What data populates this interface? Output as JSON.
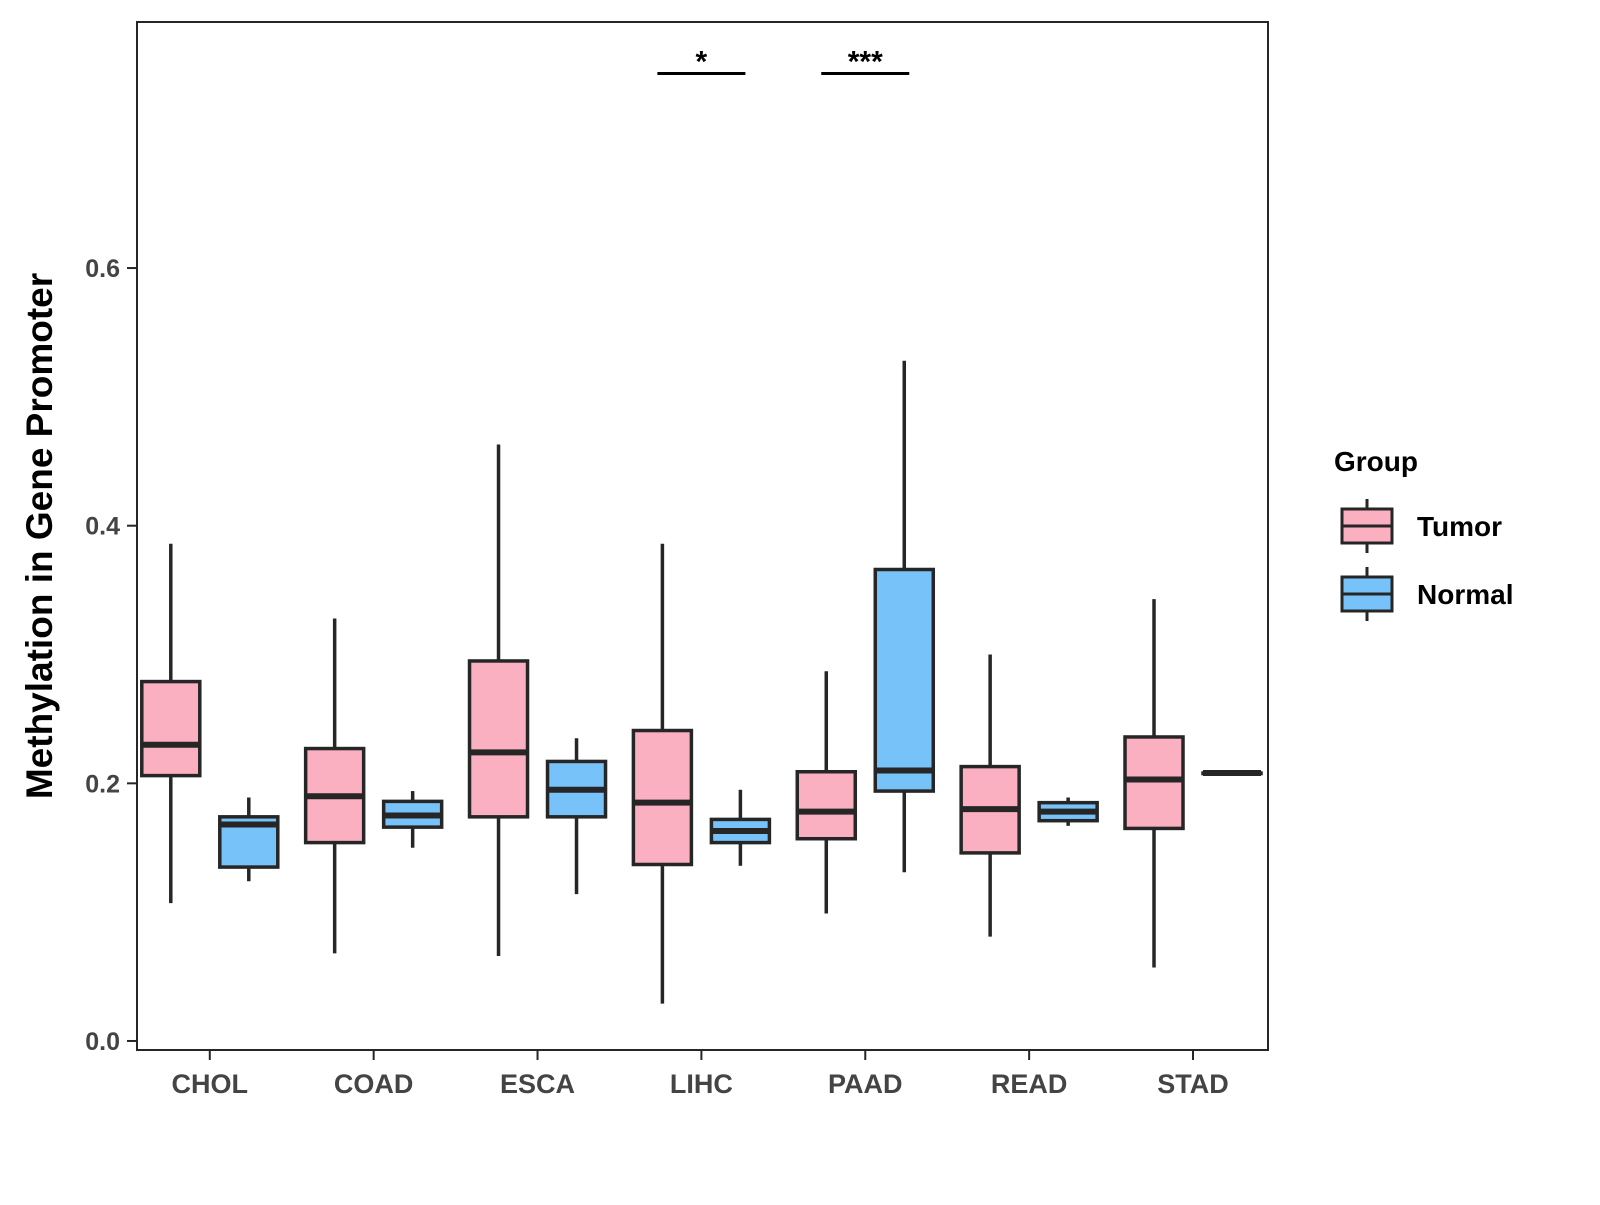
{
  "chart_data": {
    "type": "boxplot",
    "title": "",
    "xlabel": "",
    "ylabel": "Methylation in Gene Promoter",
    "ylim": [
      -0.007,
      0.791
    ],
    "yticks": [
      0.0,
      0.2,
      0.4,
      0.6
    ],
    "ytick_labels": [
      "0.0",
      "0.2",
      "0.4",
      "0.6"
    ],
    "grid": false,
    "categories": [
      "CHOL",
      "COAD",
      "ESCA",
      "LIHC",
      "PAAD",
      "READ",
      "STAD"
    ],
    "legend": {
      "title": "Group",
      "placement": "right",
      "entries": [
        "Tumor",
        "Normal"
      ]
    },
    "colors": {
      "Tumor": "#FBB0C2",
      "Normal": "#77C2F8",
      "stroke": "#262626"
    },
    "series": [
      {
        "name": "Tumor",
        "boxes": [
          {
            "min": 0.107,
            "q1": 0.206,
            "median": 0.23,
            "q3": 0.279,
            "max": 0.386
          },
          {
            "min": 0.068,
            "q1": 0.154,
            "median": 0.19,
            "q3": 0.227,
            "max": 0.328
          },
          {
            "min": 0.066,
            "q1": 0.174,
            "median": 0.224,
            "q3": 0.295,
            "max": 0.463
          },
          {
            "min": 0.029,
            "q1": 0.137,
            "median": 0.185,
            "q3": 0.241,
            "max": 0.386
          },
          {
            "min": 0.099,
            "q1": 0.157,
            "median": 0.178,
            "q3": 0.209,
            "max": 0.287
          },
          {
            "min": 0.081,
            "q1": 0.146,
            "median": 0.18,
            "q3": 0.213,
            "max": 0.3
          },
          {
            "min": 0.057,
            "q1": 0.165,
            "median": 0.203,
            "q3": 0.236,
            "max": 0.343
          }
        ]
      },
      {
        "name": "Normal",
        "boxes": [
          {
            "min": 0.124,
            "q1": 0.135,
            "median": 0.168,
            "q3": 0.174,
            "max": 0.189
          },
          {
            "min": 0.15,
            "q1": 0.166,
            "median": 0.175,
            "q3": 0.186,
            "max": 0.194
          },
          {
            "min": 0.114,
            "q1": 0.174,
            "median": 0.195,
            "q3": 0.217,
            "max": 0.235
          },
          {
            "min": 0.136,
            "q1": 0.154,
            "median": 0.163,
            "q3": 0.172,
            "max": 0.195
          },
          {
            "min": 0.131,
            "q1": 0.194,
            "median": 0.21,
            "q3": 0.366,
            "max": 0.528
          },
          {
            "min": 0.167,
            "q1": 0.171,
            "median": 0.178,
            "q3": 0.185,
            "max": 0.189
          },
          {
            "min": 0.208,
            "q1": 0.208,
            "median": 0.208,
            "q3": 0.208,
            "max": 0.208
          }
        ]
      }
    ],
    "annotations": [
      {
        "category": "LIHC",
        "label": "*",
        "y": 0.751
      },
      {
        "category": "PAAD",
        "label": "***",
        "y": 0.751
      }
    ]
  }
}
